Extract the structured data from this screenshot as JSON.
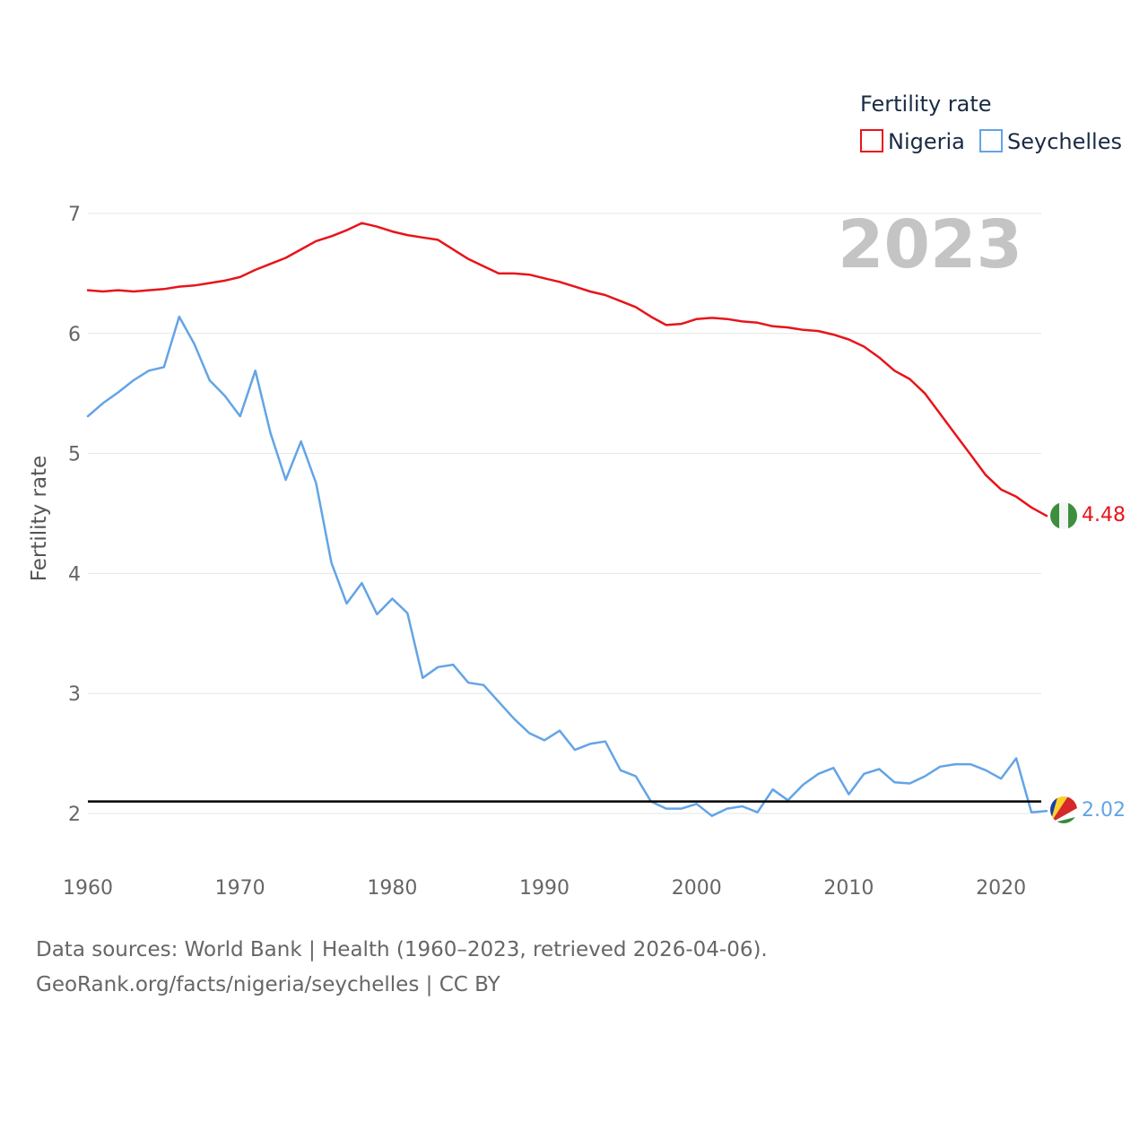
{
  "chart_data": {
    "type": "line",
    "title": "",
    "legend_title": "Fertility rate",
    "ylabel": "Fertility rate",
    "xlabel": "",
    "year_label": "2023",
    "xlim": [
      1960,
      2023
    ],
    "ylim": [
      1.8,
      7.1
    ],
    "x_ticks": [
      1960,
      1970,
      1980,
      1990,
      2000,
      2010,
      2020
    ],
    "y_ticks": [
      2,
      3,
      4,
      5,
      6,
      7
    ],
    "reference_line": 2.1,
    "legend_position": "top-right",
    "x": [
      1960,
      1961,
      1962,
      1963,
      1964,
      1965,
      1966,
      1967,
      1968,
      1969,
      1970,
      1971,
      1972,
      1973,
      1974,
      1975,
      1976,
      1977,
      1978,
      1979,
      1980,
      1981,
      1982,
      1983,
      1984,
      1985,
      1986,
      1987,
      1988,
      1989,
      1990,
      1991,
      1992,
      1993,
      1994,
      1995,
      1996,
      1997,
      1998,
      1999,
      2000,
      2001,
      2002,
      2003,
      2004,
      2005,
      2006,
      2007,
      2008,
      2009,
      2010,
      2011,
      2012,
      2013,
      2014,
      2015,
      2016,
      2017,
      2018,
      2019,
      2020,
      2021,
      2022,
      2023
    ],
    "series": [
      {
        "name": "Nigeria",
        "color": "#e8141a",
        "end_label": "4.48",
        "flag": "nigeria-flag-icon",
        "values": [
          6.36,
          6.35,
          6.36,
          6.35,
          6.36,
          6.37,
          6.39,
          6.4,
          6.42,
          6.44,
          6.47,
          6.53,
          6.58,
          6.63,
          6.7,
          6.77,
          6.81,
          6.86,
          6.92,
          6.89,
          6.85,
          6.82,
          6.8,
          6.78,
          6.7,
          6.62,
          6.56,
          6.5,
          6.5,
          6.49,
          6.46,
          6.43,
          6.39,
          6.35,
          6.32,
          6.27,
          6.22,
          6.14,
          6.07,
          6.08,
          6.12,
          6.13,
          6.12,
          6.1,
          6.09,
          6.06,
          6.05,
          6.03,
          6.02,
          5.99,
          5.95,
          5.89,
          5.8,
          5.69,
          5.62,
          5.5,
          5.33,
          5.16,
          4.99,
          4.82,
          4.7,
          4.64,
          4.55,
          4.48
        ]
      },
      {
        "name": "Seychelles",
        "color": "#63a4e6",
        "end_label": "2.02",
        "flag": "seychelles-flag-icon",
        "values": [
          5.31,
          5.42,
          5.51,
          5.61,
          5.69,
          5.72,
          6.14,
          5.91,
          5.61,
          5.48,
          5.31,
          5.69,
          5.17,
          4.78,
          5.1,
          4.75,
          4.09,
          3.75,
          3.92,
          3.66,
          3.79,
          3.67,
          3.13,
          3.22,
          3.24,
          3.09,
          3.07,
          2.93,
          2.79,
          2.67,
          2.61,
          2.69,
          2.53,
          2.58,
          2.6,
          2.36,
          2.31,
          2.1,
          2.04,
          2.04,
          2.08,
          1.98,
          2.04,
          2.06,
          2.01,
          2.2,
          2.11,
          2.24,
          2.33,
          2.38,
          2.16,
          2.33,
          2.37,
          2.26,
          2.25,
          2.31,
          2.39,
          2.41,
          2.41,
          2.36,
          2.29,
          2.46,
          2.01,
          2.02
        ]
      }
    ]
  },
  "footer": {
    "source": "Data sources: World Bank | Health (1960–2023, retrieved 2026-04-06).",
    "credit": "GeoRank.org/facts/nigeria/seychelles | CC BY"
  }
}
